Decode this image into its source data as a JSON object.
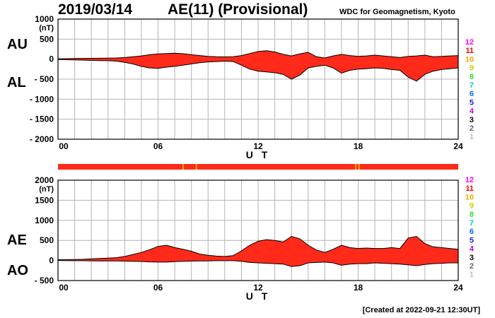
{
  "header": {
    "date": "2019/03/14",
    "title": "AE(11) (Provisional)",
    "organization": "WDC for Geomagnetism, Kyoto",
    "created": "[Created at 2022-09-21 12:30UT]"
  },
  "legend": {
    "items": [
      {
        "label": "12",
        "color": "#ff00ff"
      },
      {
        "label": "11",
        "color": "#ff0000"
      },
      {
        "label": "10",
        "color": "#ffa500"
      },
      {
        "label": "9",
        "color": "#d0d000"
      },
      {
        "label": "8",
        "color": "#33dd33"
      },
      {
        "label": "7",
        "color": "#00cccc"
      },
      {
        "label": "6",
        "color": "#0066ff"
      },
      {
        "label": "5",
        "color": "#2222cc"
      },
      {
        "label": "4",
        "color": "#cc00cc"
      },
      {
        "label": "3",
        "color": "#000000"
      },
      {
        "label": "2",
        "color": "#666666"
      },
      {
        "label": "1",
        "color": "#bbbbbb"
      }
    ]
  },
  "status_bar": {
    "color": "#ff2a1a",
    "marks": [
      {
        "hour": 7.5,
        "color": "#ffb000"
      },
      {
        "hour": 8.3,
        "color": "#ffb000"
      },
      {
        "hour": 17.85,
        "color": "#ffb000"
      },
      {
        "hour": 18.05,
        "color": "#ffb000"
      }
    ]
  },
  "chart_data": [
    {
      "type": "area",
      "name": "AU/AL",
      "upper_label": "AU",
      "lower_label": "AL",
      "unit": "(nT)",
      "xlabel": "U T",
      "xlim": [
        0,
        24
      ],
      "xticks": [
        0,
        6,
        12,
        18,
        24
      ],
      "xtick_labels": [
        "00",
        "06",
        "12",
        "18",
        "24"
      ],
      "ylim": [
        -2000,
        1000
      ],
      "yticks": [
        1000,
        500,
        0,
        -500,
        -1000,
        -1500,
        -2000
      ],
      "ytick_labels": [
        "1000",
        "500",
        "0",
        "- 500",
        "- 1000",
        "- 1500",
        "- 2000"
      ],
      "fill_color": "#ff2a1a",
      "grid": true,
      "x": [
        0,
        0.5,
        1,
        1.5,
        2,
        2.5,
        3,
        3.5,
        4,
        4.5,
        5,
        5.5,
        6,
        6.5,
        7,
        7.5,
        8,
        8.5,
        9,
        9.5,
        10,
        10.5,
        11,
        11.5,
        12,
        12.5,
        13,
        13.5,
        14,
        14.5,
        15,
        15.5,
        16,
        16.5,
        17,
        17.5,
        18,
        18.5,
        19,
        19.5,
        20,
        20.5,
        21,
        21.5,
        22,
        22.5,
        23,
        23.5,
        24
      ],
      "upper": [
        10,
        12,
        15,
        18,
        20,
        22,
        25,
        30,
        40,
        60,
        80,
        110,
        130,
        140,
        150,
        135,
        110,
        90,
        70,
        60,
        55,
        60,
        90,
        140,
        190,
        210,
        180,
        120,
        80,
        130,
        170,
        60,
        30,
        80,
        120,
        90,
        70,
        80,
        100,
        80,
        60,
        40,
        70,
        80,
        100,
        60,
        70,
        80,
        90
      ],
      "lower": [
        -10,
        -15,
        -20,
        -25,
        -30,
        -35,
        -40,
        -50,
        -80,
        -120,
        -180,
        -220,
        -230,
        -200,
        -180,
        -150,
        -120,
        -90,
        -70,
        -60,
        -50,
        -60,
        -150,
        -250,
        -300,
        -320,
        -340,
        -380,
        -500,
        -400,
        -220,
        -180,
        -150,
        -220,
        -350,
        -280,
        -250,
        -240,
        -220,
        -230,
        -260,
        -280,
        -450,
        -550,
        -380,
        -300,
        -260,
        -240,
        -220
      ]
    },
    {
      "type": "area",
      "name": "AE/AO",
      "upper_label": "AE",
      "lower_label": "AO",
      "unit": "(nT)",
      "xlabel": "U T",
      "xlim": [
        0,
        24
      ],
      "xticks": [
        0,
        6,
        12,
        18,
        24
      ],
      "xtick_labels": [
        "00",
        "06",
        "12",
        "18",
        "24"
      ],
      "ylim": [
        -500,
        2000
      ],
      "yticks": [
        2000,
        1500,
        1000,
        500,
        0,
        -500
      ],
      "ytick_labels": [
        "2000",
        "1500",
        "1000",
        "500",
        "0",
        "- 500"
      ],
      "fill_color": "#ff2a1a",
      "grid": true,
      "x": [
        0,
        0.5,
        1,
        1.5,
        2,
        2.5,
        3,
        3.5,
        4,
        4.5,
        5,
        5.5,
        6,
        6.5,
        7,
        7.5,
        8,
        8.5,
        9,
        9.5,
        10,
        10.5,
        11,
        11.5,
        12,
        12.5,
        13,
        13.5,
        14,
        14.5,
        15,
        15.5,
        16,
        16.5,
        17,
        17.5,
        18,
        18.5,
        19,
        19.5,
        20,
        20.5,
        21,
        21.5,
        22,
        22.5,
        23,
        23.5,
        24
      ],
      "upper": [
        20,
        22,
        25,
        30,
        40,
        50,
        60,
        70,
        100,
        150,
        200,
        270,
        350,
        380,
        320,
        280,
        230,
        160,
        130,
        110,
        100,
        120,
        240,
        380,
        480,
        520,
        500,
        460,
        600,
        540,
        380,
        260,
        200,
        280,
        380,
        320,
        300,
        310,
        300,
        300,
        320,
        300,
        560,
        600,
        420,
        340,
        320,
        300,
        280
      ],
      "lower": [
        0,
        -3,
        -5,
        -5,
        -8,
        -10,
        -10,
        -12,
        -15,
        -20,
        -25,
        -35,
        -40,
        -40,
        -30,
        -20,
        -15,
        -10,
        -10,
        -5,
        -5,
        -5,
        -20,
        -50,
        -60,
        -70,
        -80,
        -90,
        -150,
        -130,
        -60,
        -50,
        -40,
        -60,
        -120,
        -90,
        -80,
        -80,
        -60,
        -70,
        -80,
        -90,
        -110,
        -130,
        -100,
        -80,
        -70,
        -60,
        -60
      ]
    }
  ]
}
